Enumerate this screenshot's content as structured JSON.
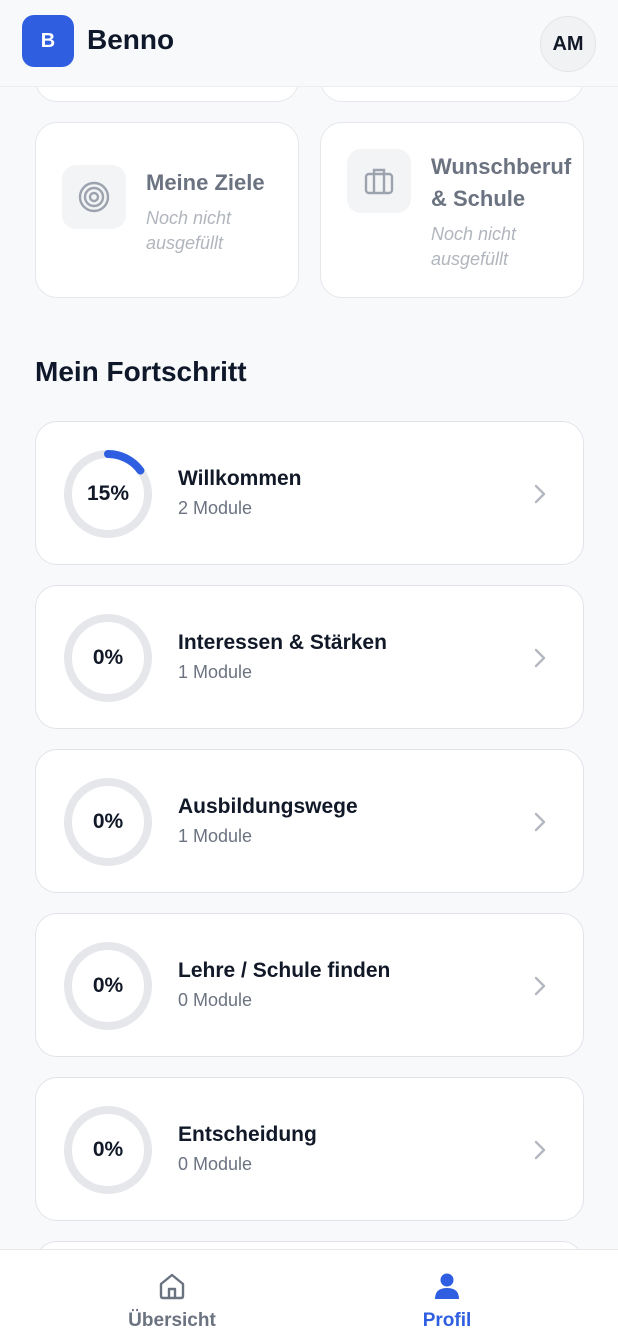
{
  "header": {
    "logo_letter": "B",
    "app_name": "Benno",
    "avatar_initials": "AM"
  },
  "info_cards": [
    {
      "icon": "target-icon",
      "title": "Meine Ziele",
      "subtitle": "Noch nicht ausgefüllt"
    },
    {
      "icon": "briefcase-icon",
      "title": "Wunschberuf & Schule",
      "subtitle": "Noch nicht ausgefüllt"
    }
  ],
  "progress_section": {
    "title": "Mein Fortschritt",
    "items": [
      {
        "percent_label": "15%",
        "progress": 0.15,
        "title": "Willkommen",
        "modules": "2 Module"
      },
      {
        "percent_label": "0%",
        "progress": 0,
        "title": "Interessen & Stärken",
        "modules": "1 Module"
      },
      {
        "percent_label": "0%",
        "progress": 0,
        "title": "Ausbildungswege",
        "modules": "1 Module"
      },
      {
        "percent_label": "0%",
        "progress": 0,
        "title": "Lehre / Schule finden",
        "modules": "0 Module"
      },
      {
        "percent_label": "0%",
        "progress": 0,
        "title": "Entscheidung",
        "modules": "0 Module"
      }
    ]
  },
  "bottom_nav": {
    "items": [
      {
        "label": "Übersicht",
        "icon": "home-icon",
        "active": false
      },
      {
        "label": "Profil",
        "icon": "user-icon",
        "active": true
      }
    ]
  },
  "colors": {
    "accent": "#2f5fe0",
    "ring_track": "#e5e7eb",
    "inactive_nav": "#6b7280"
  }
}
